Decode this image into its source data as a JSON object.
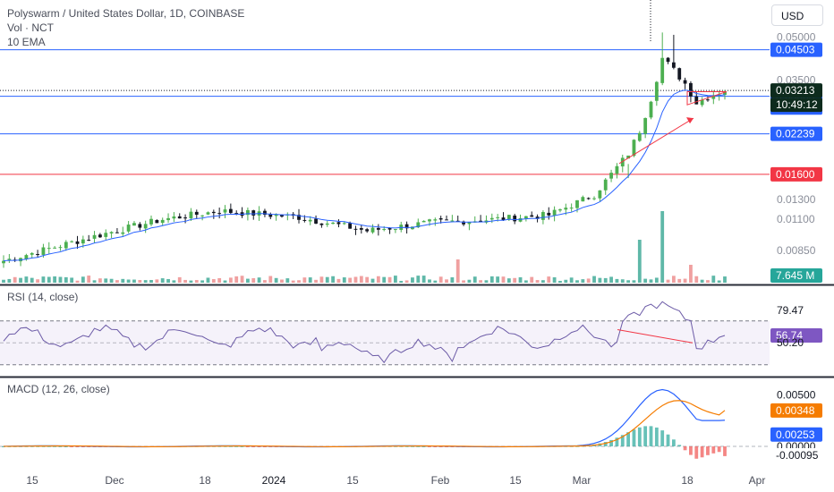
{
  "header": {
    "title": "Polyswarm / United States Dollar, 1D, COINBASE",
    "vol": "Vol · NCT",
    "ema": "10 EMA",
    "currency": "USD"
  },
  "colors": {
    "up": "#4caf50",
    "down": "#131722",
    "blue_line": "#2962ff",
    "red_line": "#f23645",
    "ema": "#2962ff",
    "rsi": "#6c5ba7",
    "macd": "#2962ff",
    "signal": "#f57c00",
    "vol_up": "#5fb8a8",
    "vol_down": "#f0a0a0"
  },
  "chart_data": [
    {
      "type": "candlestick",
      "title": "Polyswarm / United States Dollar, 1D, COINBASE",
      "ylim": [
        0.0065,
        0.0545
      ],
      "log_scale": true,
      "x_ticks": [
        "15",
        "Dec",
        "18",
        "2024",
        "15",
        "Feb",
        "15",
        "Mar",
        "18",
        "Apr"
      ],
      "y_ticks": [
        "0.05000",
        "0.03500",
        "0.01300",
        "0.01100",
        "0.00850"
      ],
      "horizontal_levels": [
        {
          "value": 0.04503,
          "label": "0.04503",
          "color": "blue"
        },
        {
          "value": 0.0306,
          "label": "0.03060",
          "color": "blue"
        },
        {
          "value": 0.02239,
          "label": "0.02239",
          "color": "blue"
        },
        {
          "value": 0.016,
          "label": "0.01600",
          "color": "red"
        }
      ],
      "current_price": {
        "value": 0.03213,
        "label": "0.03213",
        "countdown": "10:49:12"
      },
      "level_labels_extra": [
        "0.03002"
      ],
      "volume_label": "7.645 M",
      "grid": true,
      "series": [
        {
          "name": "Vol · NCT",
          "note": "volume histogram"
        },
        {
          "name": "10 EMA",
          "note": "exponential moving average"
        }
      ]
    },
    {
      "type": "line",
      "title": "RSI (14, close)",
      "ylim": [
        20,
        100
      ],
      "y_ticks": [
        "79.47",
        "50.20"
      ],
      "current_value": "56.74",
      "bands": [
        70,
        30
      ]
    },
    {
      "type": "line",
      "title": "MACD (12, 26, close)",
      "y_ticks": [
        "0.00500",
        "0.00000"
      ],
      "labels": {
        "signal": "0.00348",
        "macd": "0.00253",
        "histogram": "-0.00095"
      }
    }
  ]
}
